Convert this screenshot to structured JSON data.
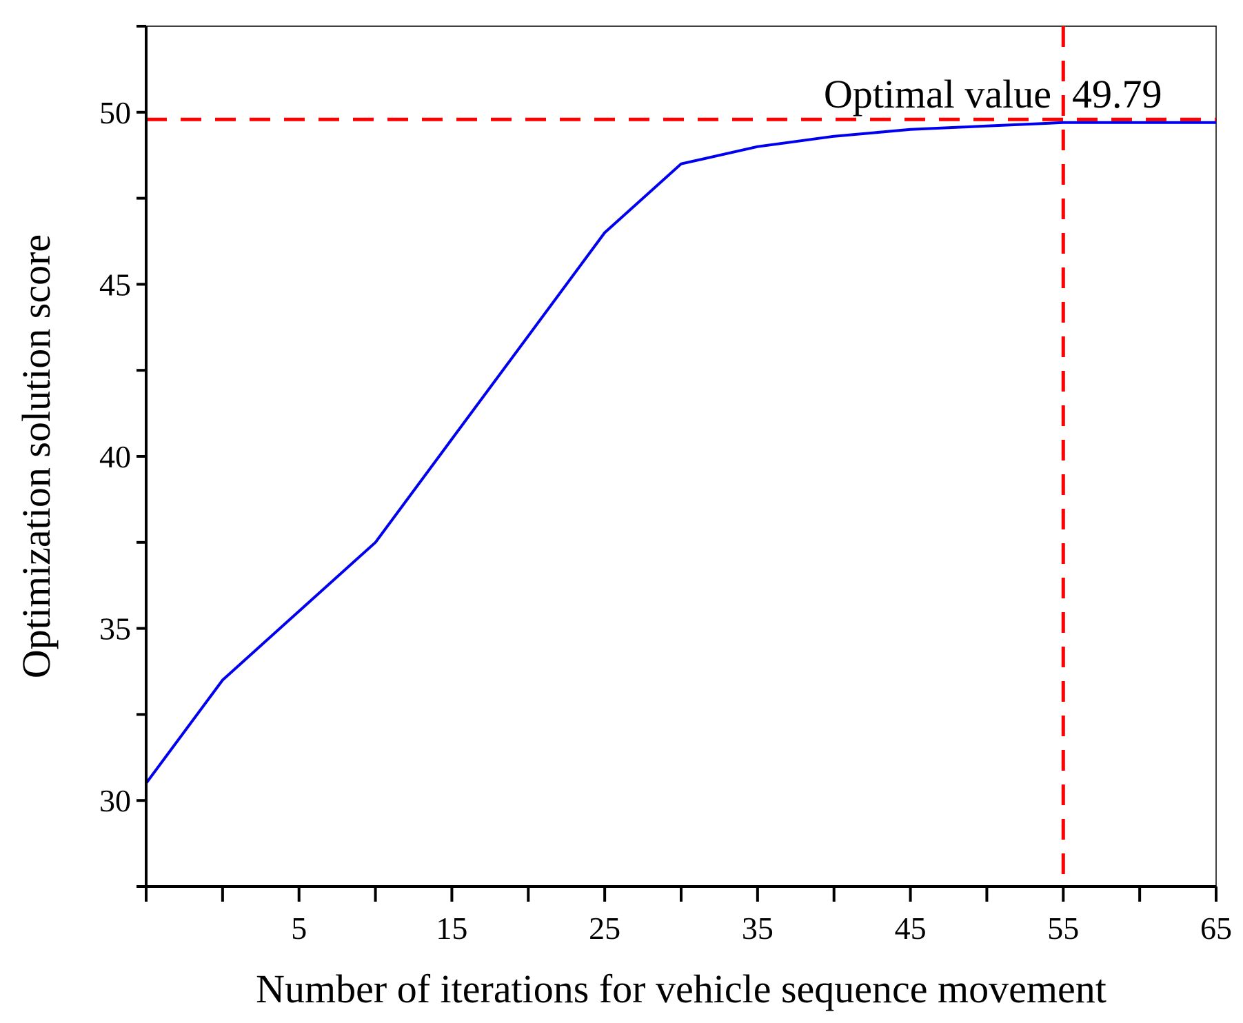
{
  "chart_data": {
    "type": "line",
    "title": "",
    "xlabel": "Number of iterations for vehicle sequence movement",
    "ylabel": "Optimization solution score",
    "xlim": [
      -5,
      65
    ],
    "ylim": [
      27.5,
      52.5
    ],
    "x_major_ticks": [
      5,
      15,
      25,
      35,
      45,
      55,
      65
    ],
    "x_minor_ticks": [
      -5,
      0,
      10,
      20,
      30,
      40,
      50,
      60
    ],
    "y_major_ticks": [
      30,
      35,
      40,
      45,
      50
    ],
    "y_minor_ticks": [
      27.5,
      32.5,
      37.5,
      42.5,
      47.5,
      52.5
    ],
    "x_tick_labels": [
      "5",
      "15",
      "25",
      "35",
      "45",
      "55",
      "65"
    ],
    "y_tick_labels": [
      "30",
      "35",
      "40",
      "45",
      "50"
    ],
    "grid": false,
    "series": [
      {
        "name": "Optimization solution score",
        "color": "#0000ee",
        "x": [
          -5,
          0,
          5,
          10,
          15,
          20,
          25,
          30,
          35,
          40,
          45,
          50,
          55,
          60,
          65
        ],
        "y": [
          30.5,
          33.5,
          35.5,
          37.5,
          40.5,
          43.5,
          46.5,
          48.5,
          49.0,
          49.3,
          49.5,
          49.6,
          49.7,
          49.7,
          49.7
        ]
      }
    ],
    "reference_lines": {
      "color": "#ff0000",
      "horizontal_y": 49.79,
      "vertical_x": 55
    },
    "annotation": {
      "label": "Optimal value",
      "value": "49.79"
    }
  }
}
